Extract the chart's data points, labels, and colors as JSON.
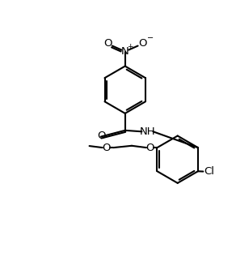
{
  "bg": "#ffffff",
  "fc": "#000000",
  "lw": 1.5,
  "fs": 9.5,
  "figsize": [
    2.92,
    3.38
  ],
  "dpi": 100,
  "xlim": [
    0,
    10
  ],
  "ylim": [
    0,
    11.6
  ]
}
